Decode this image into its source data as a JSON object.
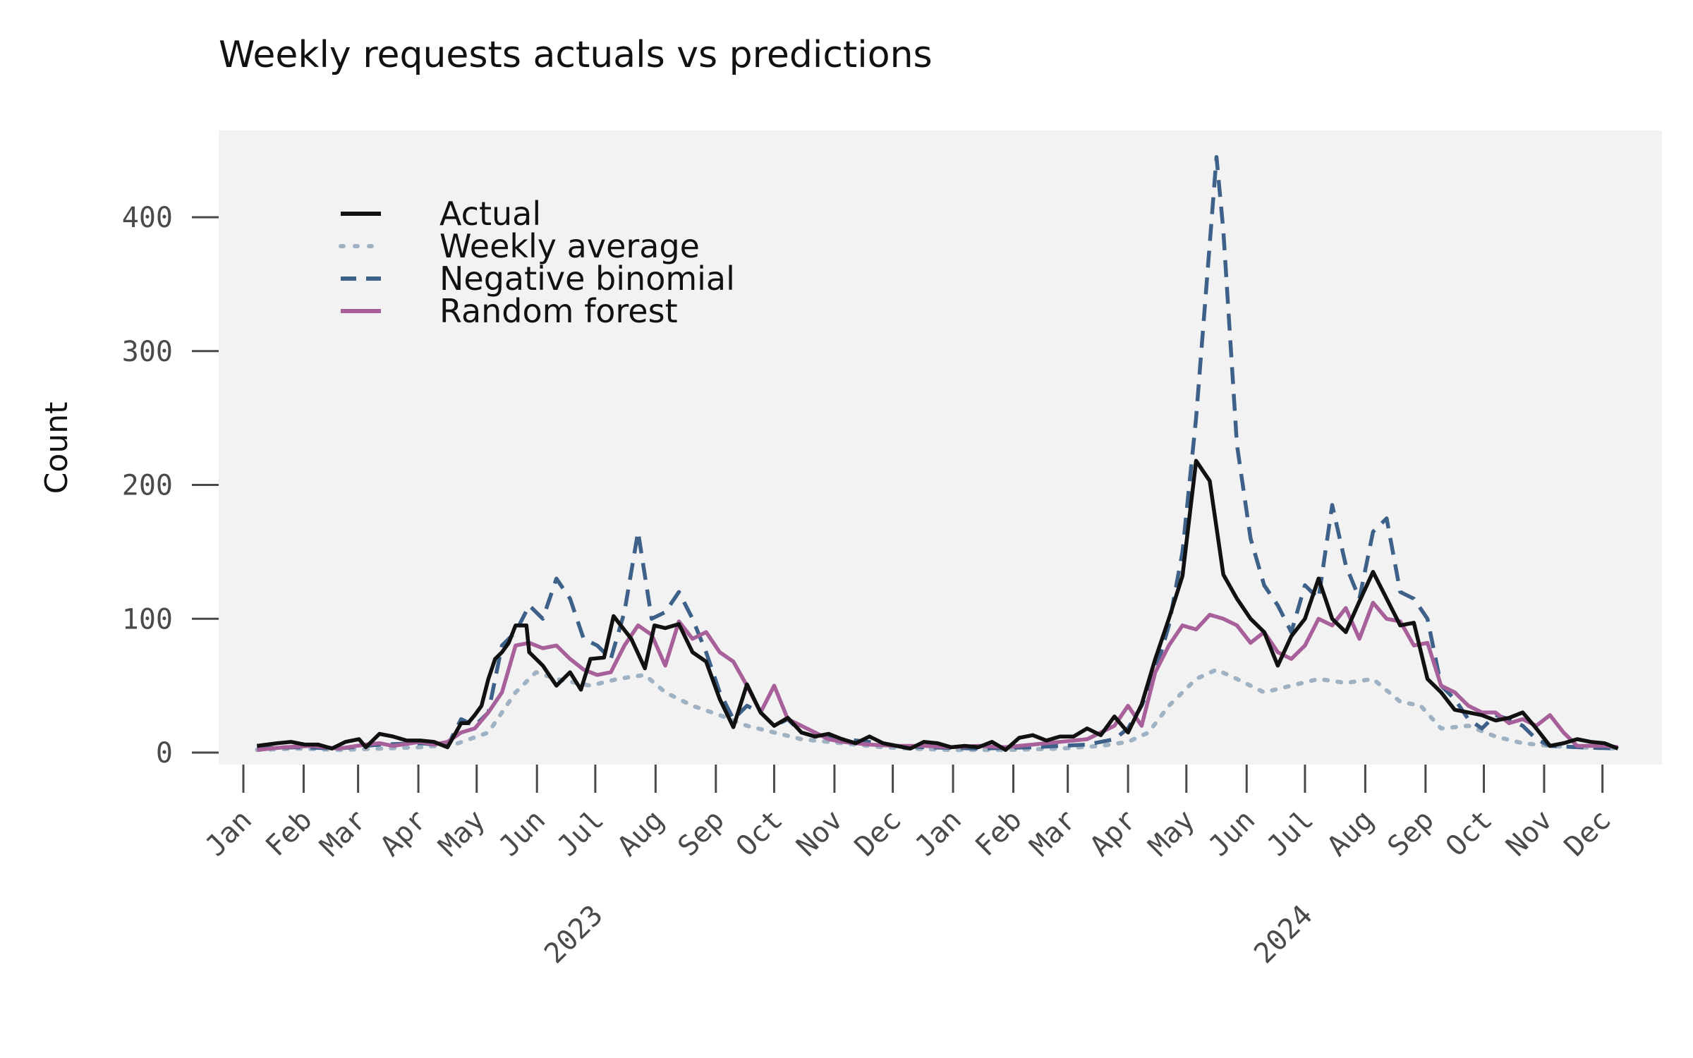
{
  "chart_data": {
    "type": "line",
    "title": "Weekly requests actuals vs predictions",
    "xlabel": "",
    "ylabel": "Count",
    "x_start": "2023-01-01",
    "x_end": "2024-12-31",
    "ylim": [
      -8,
      465
    ],
    "y_ticks": [
      0,
      100,
      200,
      300,
      400
    ],
    "y_tick_labels": [
      "0",
      "100",
      "200",
      "300",
      "400"
    ],
    "month_tick_labels": [
      "Jan",
      "Feb",
      "Mar",
      "Apr",
      "May",
      "Jun",
      "Jul",
      "Aug",
      "Sep",
      "Oct",
      "Nov",
      "Dec",
      "Jan",
      "Feb",
      "Mar",
      "Apr",
      "May",
      "Jun",
      "Jul",
      "Aug",
      "Sep",
      "Oct",
      "Nov",
      "Dec"
    ],
    "year_labels": [
      "2023",
      "2024"
    ],
    "grid": false,
    "legend_position": "top-left",
    "series": [
      {
        "name": "Actual",
        "color": "#111111",
        "style": "solid",
        "values": [
          [
            1,
            5
          ],
          [
            2.5,
            7
          ],
          [
            3.5,
            8
          ],
          [
            4.5,
            6
          ],
          [
            5.5,
            6
          ],
          [
            6.5,
            3
          ],
          [
            7.5,
            8
          ],
          [
            8.5,
            10
          ],
          [
            9,
            4
          ],
          [
            10,
            14
          ],
          [
            11,
            12
          ],
          [
            12,
            9
          ],
          [
            13,
            9
          ],
          [
            14,
            8
          ],
          [
            15,
            4
          ],
          [
            16,
            22
          ],
          [
            16.5,
            22
          ],
          [
            17,
            28
          ],
          [
            17.5,
            35
          ],
          [
            18,
            55
          ],
          [
            18.5,
            70
          ],
          [
            19,
            75
          ],
          [
            19.5,
            82
          ],
          [
            20,
            95
          ],
          [
            20.8,
            95
          ],
          [
            21,
            75
          ],
          [
            22,
            65
          ],
          [
            23,
            50
          ],
          [
            24,
            60
          ],
          [
            24.8,
            47
          ],
          [
            25.5,
            70
          ],
          [
            26.5,
            71
          ],
          [
            27.2,
            102
          ],
          [
            28.5,
            85
          ],
          [
            29.5,
            63
          ],
          [
            30.2,
            95
          ],
          [
            31,
            93
          ],
          [
            32,
            96
          ],
          [
            33,
            75
          ],
          [
            34,
            68
          ],
          [
            35,
            40
          ],
          [
            36,
            19
          ],
          [
            37,
            51
          ],
          [
            38,
            30
          ],
          [
            39,
            20
          ],
          [
            40,
            26
          ],
          [
            41,
            15
          ],
          [
            42,
            12
          ],
          [
            43,
            14
          ],
          [
            44,
            10
          ],
          [
            45,
            7
          ],
          [
            46,
            12
          ],
          [
            47,
            7
          ],
          [
            48,
            5
          ],
          [
            49,
            3
          ],
          [
            50,
            8
          ],
          [
            51,
            7
          ],
          [
            52,
            4
          ],
          [
            53,
            5
          ],
          [
            54,
            4
          ],
          [
            55,
            8
          ],
          [
            56,
            2
          ],
          [
            57,
            11
          ],
          [
            58,
            13
          ],
          [
            59,
            9
          ],
          [
            60,
            12
          ],
          [
            61,
            12
          ],
          [
            62,
            18
          ],
          [
            63,
            13
          ],
          [
            64,
            27
          ],
          [
            65,
            15
          ],
          [
            66,
            36
          ],
          [
            67,
            70
          ],
          [
            68,
            100
          ],
          [
            69,
            132
          ],
          [
            70,
            218
          ],
          [
            71,
            203
          ],
          [
            72,
            133
          ],
          [
            73,
            115
          ],
          [
            74,
            100
          ],
          [
            75,
            90
          ],
          [
            76,
            65
          ],
          [
            77,
            87
          ],
          [
            78,
            100
          ],
          [
            79,
            130
          ],
          [
            80,
            100
          ],
          [
            81,
            90
          ],
          [
            82,
            113
          ],
          [
            83,
            135
          ],
          [
            84,
            115
          ],
          [
            85,
            95
          ],
          [
            86,
            97
          ],
          [
            87,
            55
          ],
          [
            88,
            45
          ],
          [
            89,
            32
          ],
          [
            90,
            30
          ],
          [
            91,
            28
          ],
          [
            92,
            24
          ],
          [
            93,
            26
          ],
          [
            94,
            30
          ],
          [
            95,
            18
          ],
          [
            96,
            5
          ],
          [
            97,
            7
          ],
          [
            98,
            10
          ],
          [
            99,
            8
          ],
          [
            100,
            7
          ],
          [
            101,
            3
          ]
        ]
      },
      {
        "name": "Weekly average",
        "color": "#9fb2c4",
        "style": "dotted",
        "values": [
          [
            1,
            2
          ],
          [
            4,
            3
          ],
          [
            7,
            2
          ],
          [
            10,
            3
          ],
          [
            13,
            4
          ],
          [
            15.5,
            6
          ],
          [
            18,
            15
          ],
          [
            20,
            45
          ],
          [
            21.5,
            60
          ],
          [
            23,
            55
          ],
          [
            25.5,
            50
          ],
          [
            27.5,
            55
          ],
          [
            29.5,
            58
          ],
          [
            31,
            45
          ],
          [
            33,
            35
          ],
          [
            35,
            28
          ],
          [
            37,
            20
          ],
          [
            39,
            15
          ],
          [
            41,
            10
          ],
          [
            43,
            8
          ],
          [
            45,
            6
          ],
          [
            47,
            4
          ],
          [
            49,
            3
          ],
          [
            52,
            2
          ],
          [
            56,
            2
          ],
          [
            60,
            3
          ],
          [
            63,
            5
          ],
          [
            65,
            8
          ],
          [
            66.5,
            15
          ],
          [
            68,
            35
          ],
          [
            70,
            55
          ],
          [
            71.5,
            62
          ],
          [
            73,
            55
          ],
          [
            75,
            45
          ],
          [
            77,
            50
          ],
          [
            79,
            55
          ],
          [
            81,
            52
          ],
          [
            83,
            55
          ],
          [
            85,
            38
          ],
          [
            86.5,
            35
          ],
          [
            88,
            18
          ],
          [
            90,
            20
          ],
          [
            92,
            12
          ],
          [
            94,
            7
          ],
          [
            96,
            5
          ],
          [
            98,
            4
          ],
          [
            101,
            3
          ]
        ]
      },
      {
        "name": "Negative binomial",
        "color": "#3d6188",
        "style": "dashed",
        "values": [
          [
            1,
            3
          ],
          [
            4,
            4
          ],
          [
            7,
            3
          ],
          [
            10,
            6
          ],
          [
            13,
            7
          ],
          [
            15,
            5
          ],
          [
            16,
            25
          ],
          [
            17,
            20
          ],
          [
            18,
            30
          ],
          [
            19,
            80
          ],
          [
            20,
            90
          ],
          [
            21,
            110
          ],
          [
            22,
            100
          ],
          [
            23,
            130
          ],
          [
            24,
            115
          ],
          [
            25,
            85
          ],
          [
            26,
            80
          ],
          [
            27,
            70
          ],
          [
            28,
            105
          ],
          [
            29,
            165
          ],
          [
            30,
            100
          ],
          [
            31,
            105
          ],
          [
            32,
            120
          ],
          [
            33,
            100
          ],
          [
            34,
            75
          ],
          [
            35,
            45
          ],
          [
            36,
            25
          ],
          [
            37,
            35
          ],
          [
            38,
            30
          ],
          [
            39,
            20
          ],
          [
            40,
            25
          ],
          [
            41,
            15
          ],
          [
            42,
            12
          ],
          [
            44,
            10
          ],
          [
            46,
            8
          ],
          [
            48,
            5
          ],
          [
            50,
            4
          ],
          [
            54,
            3
          ],
          [
            58,
            4
          ],
          [
            62,
            6
          ],
          [
            64,
            10
          ],
          [
            65,
            18
          ],
          [
            66,
            35
          ],
          [
            67,
            60
          ],
          [
            68,
            95
          ],
          [
            69,
            150
          ],
          [
            70,
            250
          ],
          [
            71,
            380
          ],
          [
            71.5,
            445
          ],
          [
            72,
            390
          ],
          [
            73,
            230
          ],
          [
            74,
            160
          ],
          [
            75,
            125
          ],
          [
            76,
            110
          ],
          [
            77,
            90
          ],
          [
            78,
            125
          ],
          [
            79,
            115
          ],
          [
            80,
            185
          ],
          [
            81,
            140
          ],
          [
            82,
            115
          ],
          [
            83,
            165
          ],
          [
            84,
            175
          ],
          [
            85,
            120
          ],
          [
            86,
            115
          ],
          [
            87,
            100
          ],
          [
            88,
            50
          ],
          [
            89,
            40
          ],
          [
            90,
            25
          ],
          [
            91,
            18
          ],
          [
            92,
            28
          ],
          [
            93,
            25
          ],
          [
            94,
            20
          ],
          [
            95,
            10
          ],
          [
            96,
            5
          ],
          [
            98,
            4
          ],
          [
            101,
            3
          ]
        ]
      },
      {
        "name": "Random forest",
        "color": "#a8609a",
        "style": "solid",
        "values": [
          [
            1,
            2
          ],
          [
            3,
            4
          ],
          [
            5,
            5
          ],
          [
            7,
            3
          ],
          [
            9,
            6
          ],
          [
            10,
            7
          ],
          [
            11,
            5
          ],
          [
            13,
            8
          ],
          [
            14,
            6
          ],
          [
            15,
            8
          ],
          [
            16,
            15
          ],
          [
            17,
            18
          ],
          [
            18,
            30
          ],
          [
            19,
            45
          ],
          [
            20,
            80
          ],
          [
            21,
            82
          ],
          [
            22,
            78
          ],
          [
            23,
            80
          ],
          [
            24,
            70
          ],
          [
            25,
            62
          ],
          [
            26,
            58
          ],
          [
            27,
            60
          ],
          [
            28,
            80
          ],
          [
            29,
            95
          ],
          [
            30,
            88
          ],
          [
            31,
            65
          ],
          [
            32,
            98
          ],
          [
            33,
            85
          ],
          [
            34,
            90
          ],
          [
            35,
            75
          ],
          [
            36,
            68
          ],
          [
            37,
            50
          ],
          [
            38,
            30
          ],
          [
            39,
            50
          ],
          [
            40,
            25
          ],
          [
            41,
            20
          ],
          [
            42,
            15
          ],
          [
            43,
            10
          ],
          [
            44,
            8
          ],
          [
            46,
            6
          ],
          [
            48,
            5
          ],
          [
            50,
            5
          ],
          [
            52,
            4
          ],
          [
            54,
            5
          ],
          [
            56,
            4
          ],
          [
            58,
            6
          ],
          [
            60,
            8
          ],
          [
            62,
            10
          ],
          [
            63,
            15
          ],
          [
            64,
            20
          ],
          [
            65,
            35
          ],
          [
            66,
            20
          ],
          [
            67,
            60
          ],
          [
            68,
            80
          ],
          [
            69,
            95
          ],
          [
            70,
            92
          ],
          [
            71,
            103
          ],
          [
            72,
            100
          ],
          [
            73,
            95
          ],
          [
            74,
            82
          ],
          [
            75,
            90
          ],
          [
            76,
            75
          ],
          [
            77,
            70
          ],
          [
            78,
            80
          ],
          [
            79,
            100
          ],
          [
            80,
            95
          ],
          [
            81,
            108
          ],
          [
            82,
            85
          ],
          [
            83,
            112
          ],
          [
            84,
            100
          ],
          [
            85,
            98
          ],
          [
            86,
            80
          ],
          [
            87,
            82
          ],
          [
            88,
            50
          ],
          [
            89,
            45
          ],
          [
            90,
            35
          ],
          [
            91,
            30
          ],
          [
            92,
            30
          ],
          [
            93,
            22
          ],
          [
            94,
            25
          ],
          [
            95,
            20
          ],
          [
            96,
            28
          ],
          [
            97,
            15
          ],
          [
            98,
            5
          ],
          [
            100,
            5
          ],
          [
            101,
            4
          ]
        ]
      }
    ]
  }
}
